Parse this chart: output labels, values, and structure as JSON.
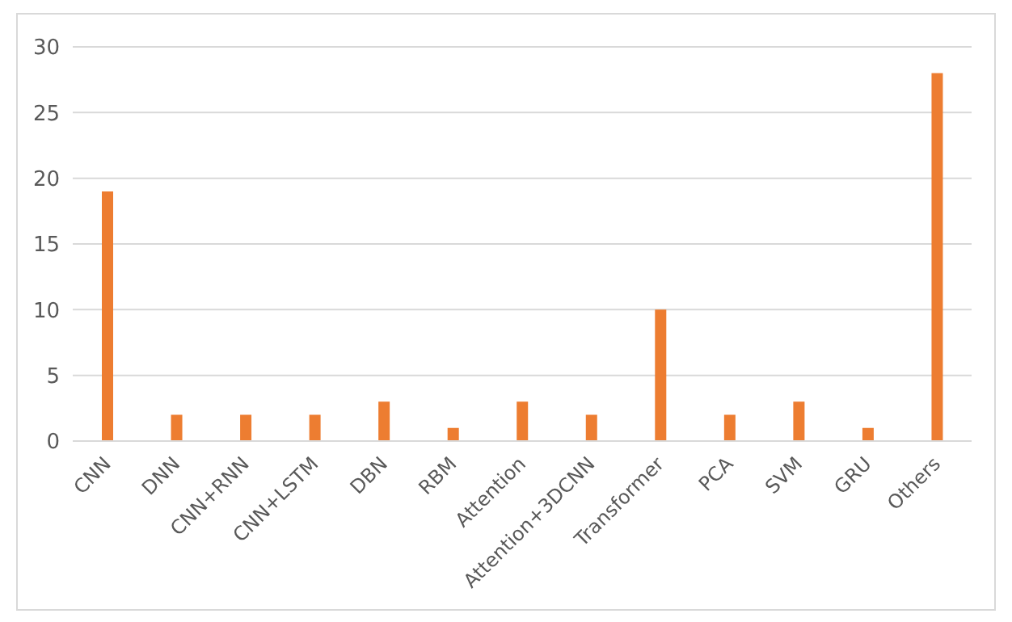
{
  "chart_data": {
    "type": "bar",
    "categories": [
      "CNN",
      "DNN",
      "CNN+RNN",
      "CNN+LSTM",
      "DBN",
      "RBM",
      "Attention",
      "Attention+3DCNN",
      "Transformer",
      "PCA",
      "SVM",
      "GRU",
      "Others"
    ],
    "values": [
      19,
      2,
      2,
      2,
      3,
      1,
      3,
      2,
      10,
      2,
      3,
      1,
      28
    ],
    "color": "#ed7d31",
    "ylim": [
      0,
      30
    ],
    "yticks": [
      0,
      5,
      10,
      15,
      20,
      25,
      30
    ],
    "grid": "y"
  }
}
